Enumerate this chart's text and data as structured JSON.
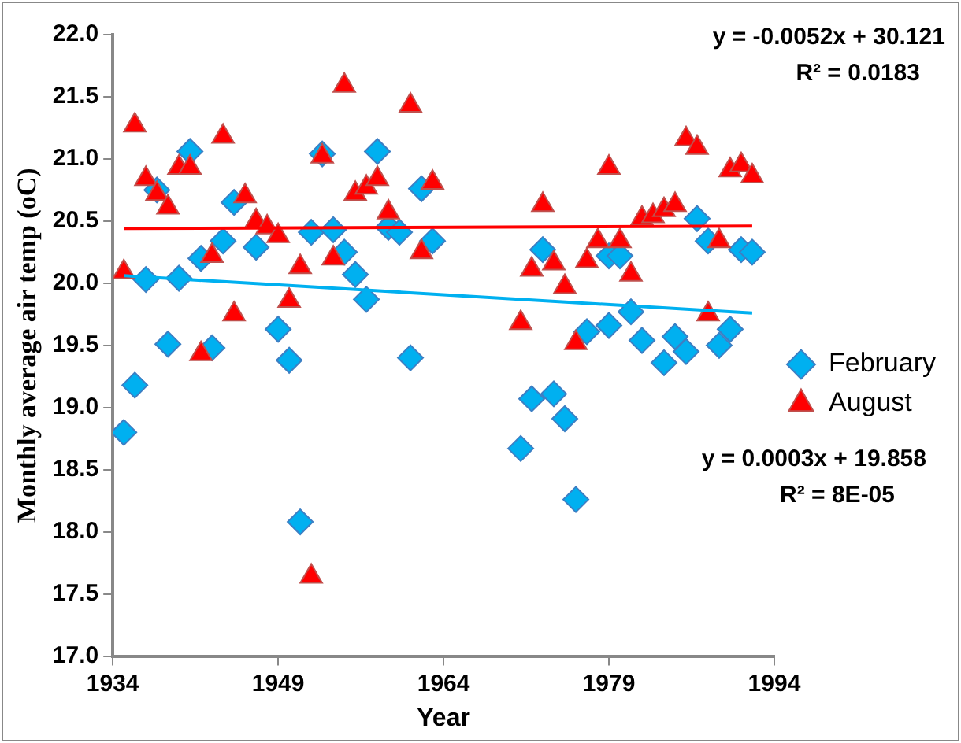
{
  "chart_data": {
    "type": "scatter",
    "xlabel": "Year",
    "ylabel": "Monthly average air temp (oC)",
    "xlim": [
      1934,
      1994
    ],
    "xticks": [
      1934,
      1949,
      1964,
      1979,
      1994
    ],
    "ylim": [
      17,
      22
    ],
    "yticks": [
      {
        "value": 17,
        "label": "17.0"
      },
      {
        "value": 17.5,
        "label": "17.5"
      },
      {
        "value": 18,
        "label": "18.0"
      },
      {
        "value": 18.5,
        "label": "18.5"
      },
      {
        "value": 19,
        "label": "19.0"
      },
      {
        "value": 19.5,
        "label": "19.5"
      },
      {
        "value": 20,
        "label": "20.0"
      },
      {
        "value": 20.5,
        "label": "20.5"
      },
      {
        "value": 21,
        "label": "21.0"
      },
      {
        "value": 21.5,
        "label": "21.5"
      },
      {
        "value": 22,
        "label": "22.0"
      }
    ],
    "grid": false,
    "legend": "right",
    "series": [
      {
        "name": "February",
        "color": "#00b0f0",
        "marker": "diamond",
        "x": [
          1935,
          1936,
          1937,
          1938,
          1939,
          1940,
          1941,
          1942,
          1943,
          1944,
          1945,
          1947,
          1949,
          1950,
          1951,
          1952,
          1953,
          1954,
          1955,
          1956,
          1957,
          1958,
          1959,
          1960,
          1961,
          1962,
          1963,
          1971,
          1972,
          1973,
          1974,
          1975,
          1976,
          1977,
          1979,
          1979,
          1980,
          1981,
          1982,
          1984,
          1985,
          1986,
          1987,
          1988,
          1989,
          1990,
          1991,
          1992
        ],
        "values": [
          18.8,
          19.18,
          20.03,
          20.75,
          19.51,
          20.04,
          21.06,
          20.2,
          19.48,
          20.34,
          20.65,
          20.29,
          19.63,
          19.38,
          18.08,
          20.41,
          21.04,
          20.43,
          20.25,
          20.07,
          19.87,
          21.06,
          20.45,
          20.41,
          19.4,
          20.76,
          20.34,
          18.67,
          19.07,
          20.27,
          19.11,
          18.91,
          18.26,
          19.61,
          19.66,
          20.22,
          20.22,
          19.77,
          19.54,
          19.36,
          19.57,
          19.45,
          20.52,
          20.34,
          19.5,
          19.63,
          20.27,
          20.25
        ]
      },
      {
        "name": "August",
        "color": "#ff0000",
        "marker": "triangle",
        "x": [
          1935,
          1936,
          1937,
          1938,
          1939,
          1940,
          1941,
          1942,
          1943,
          1944,
          1945,
          1946,
          1947,
          1948,
          1949,
          1950,
          1951,
          1952,
          1953,
          1954,
          1955,
          1956,
          1957,
          1958,
          1959,
          1961,
          1962,
          1963,
          1971,
          1972,
          1973,
          1974,
          1975,
          1976,
          1977,
          1978,
          1979,
          1980,
          1981,
          1982,
          1983,
          1984,
          1985,
          1986,
          1987,
          1988,
          1989,
          1990,
          1991,
          1992
        ],
        "values": [
          20.09,
          21.27,
          20.84,
          20.72,
          20.61,
          20.93,
          20.93,
          19.43,
          20.22,
          21.18,
          19.75,
          20.7,
          20.5,
          20.45,
          20.38,
          19.86,
          20.13,
          17.64,
          21.02,
          20.2,
          21.59,
          20.72,
          20.77,
          20.84,
          20.57,
          21.43,
          20.25,
          20.81,
          19.68,
          20.11,
          20.63,
          20.16,
          19.97,
          19.52,
          20.18,
          20.34,
          20.93,
          20.34,
          20.07,
          20.52,
          20.54,
          20.59,
          20.63,
          21.16,
          21.09,
          19.75,
          20.34,
          20.91,
          20.95,
          20.86
        ]
      },
      {
        "type": "line",
        "color": "#00b0f0",
        "marker": "none",
        "x": [
          1935,
          1992
        ],
        "values": [
          20.06,
          19.76
        ]
      },
      {
        "type": "line",
        "color": "#ff0000",
        "marker": "none",
        "x": [
          1935,
          1992
        ],
        "values": [
          20.44,
          20.46
        ]
      }
    ],
    "annotations": [
      "y = -0.0052x + 30.121",
      "R² = 0.0183",
      "y = 0.0003x + 19.858",
      "R² = 8E-05"
    ]
  }
}
